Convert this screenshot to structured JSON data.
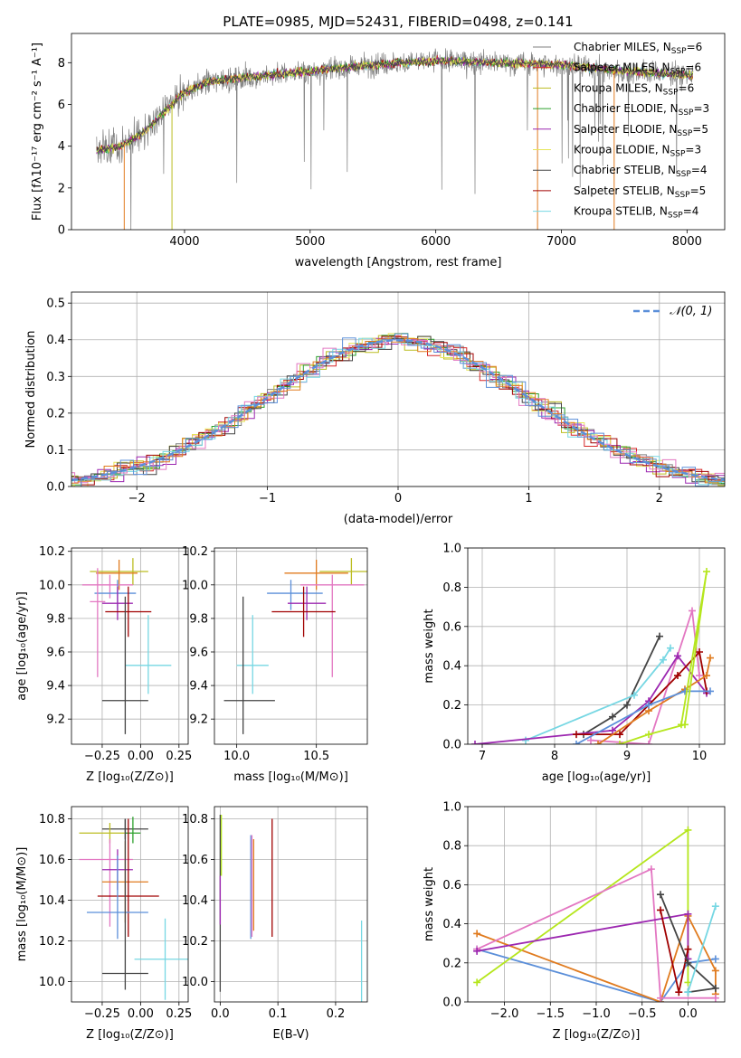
{
  "title": "PLATE=0985, MJD=52431, FIBERID=0498, z=0.141",
  "colors": {
    "chabrier_miles": "#7f7f7f",
    "salpeter_miles": "#d62728",
    "kroupa_miles": "#bcbd22",
    "chabrier_elodie": "#2ca02c",
    "salpeter_elodie": "#9c27b0",
    "kroupa_elodie": "#e6e65a",
    "chabrier_stelib": "#444444",
    "salpeter_stelib": "#a00000",
    "kroupa_stelib": "#76d7e3",
    "normal": "#5b8fd9",
    "extra_pink": "#e377c2",
    "extra_orange": "#e07b1f",
    "extra_blue": "#5b8fd9",
    "extra_lime": "#b5e61d"
  },
  "chart_data": [
    {
      "id": "spectrum",
      "type": "line",
      "xlabel": "wavelength [Angstrom, rest frame]",
      "ylabel": "Flux [fλ10⁻¹⁷ erg cm⁻² s⁻¹ A⁻¹]",
      "xlim": [
        3100,
        8300
      ],
      "ylim": [
        0,
        9.4
      ],
      "xticks": [
        4000,
        5000,
        6000,
        7000,
        8000
      ],
      "yticks": [
        0,
        2,
        4,
        6,
        8
      ],
      "grid": false,
      "legend_position": "right",
      "continuum_x": [
        3300,
        3500,
        3700,
        4000,
        4200,
        4500,
        5000,
        5500,
        6000,
        6500,
        7000,
        7500,
        8050
      ],
      "continuum_y": [
        3.8,
        4.0,
        4.8,
        6.6,
        7.1,
        7.3,
        7.6,
        7.9,
        8.1,
        8.0,
        7.9,
        7.6,
        7.4
      ],
      "series": [
        {
          "name": "Chabrier MILES, N$_{SSP}$=6",
          "label_main": "Chabrier MILES, N",
          "label_sub": "SSP",
          "label_tail": "=6",
          "color": "#7f7f7f"
        },
        {
          "name": "Salpeter MILES, N$_{SSP}$=6",
          "label_main": "Salpeter MILES, N",
          "label_sub": "SSP",
          "label_tail": "=6",
          "color": "#d62728"
        },
        {
          "name": "Kroupa MILES, N$_{SSP}$=6",
          "label_main": "Kroupa MILES, N",
          "label_sub": "SSP",
          "label_tail": "=6",
          "color": "#bcbd22"
        },
        {
          "name": "Chabrier ELODIE, N$_{SSP}$=3",
          "label_main": "Chabrier ELODIE, N",
          "label_sub": "SSP",
          "label_tail": "=3",
          "color": "#2ca02c"
        },
        {
          "name": "Salpeter ELODIE, N$_{SSP}$=5",
          "label_main": "Salpeter ELODIE, N",
          "label_sub": "SSP",
          "label_tail": "=5",
          "color": "#9c27b0"
        },
        {
          "name": "Kroupa ELODIE, N$_{SSP}$=3",
          "label_main": "Kroupa ELODIE, N",
          "label_sub": "SSP",
          "label_tail": "=3",
          "color": "#e6e65a"
        },
        {
          "name": "Chabrier STELIB, N$_{SSP}$=4",
          "label_main": "Chabrier STELIB, N",
          "label_sub": "SSP",
          "label_tail": "=4",
          "color": "#444444"
        },
        {
          "name": "Salpeter STELIB, N$_{SSP}$=5",
          "label_main": "Salpeter STELIB, N",
          "label_sub": "SSP",
          "label_tail": "=5",
          "color": "#a00000"
        },
        {
          "name": "Kroupa STELIB, N$_{SSP}$=4",
          "label_main": "Kroupa STELIB, N",
          "label_sub": "SSP",
          "label_tail": "=4",
          "color": "#76d7e3"
        }
      ]
    },
    {
      "id": "residuals",
      "type": "line",
      "xlabel": "(data-model)/error",
      "ylabel": "Normed distribution",
      "xlim": [
        -2.5,
        2.5
      ],
      "ylim": [
        0,
        0.53
      ],
      "xticks": [
        -2,
        -1,
        0,
        1,
        2
      ],
      "yticks": [
        0.0,
        0.1,
        0.2,
        0.3,
        0.4,
        0.5
      ],
      "grid": true,
      "legend_position": "top-right",
      "legend": "𝒩(0, 1)"
    },
    {
      "id": "age_vs_Z",
      "type": "scatter",
      "xlabel": "Z [log₁₀(Z/Z⊙)]",
      "ylabel": "age  [log₁₀(age/yr)]",
      "xlim": [
        -0.45,
        0.31
      ],
      "ylim": [
        9.05,
        10.22
      ],
      "xticks": [
        -0.25,
        0.0,
        0.25
      ],
      "xtick_labels": [
        "−0.25",
        "0.00",
        "0.25"
      ],
      "yticks": [
        9.2,
        9.4,
        9.6,
        9.8,
        10.0,
        10.2
      ],
      "grid": true,
      "points": [
        {
          "x": -0.05,
          "y": 10.08,
          "xerr": [
            0.28,
            0.1
          ],
          "yerr": [
            0.08,
            0.08
          ],
          "color": "#bcbd22"
        },
        {
          "x": -0.14,
          "y": 10.07,
          "xerr": [
            0.15,
            0.12
          ],
          "yerr": [
            0.1,
            0.08
          ],
          "color": "#e07b1f"
        },
        {
          "x": -0.2,
          "y": 10.0,
          "xerr": [
            0.18,
            0.15
          ],
          "yerr": [
            0.08,
            0.06
          ],
          "color": "#e377c2"
        },
        {
          "x": -0.15,
          "y": 9.95,
          "xerr": [
            0.15,
            0.12
          ],
          "yerr": [
            0.1,
            0.08
          ],
          "color": "#5b8fd9"
        },
        {
          "x": -0.15,
          "y": 9.89,
          "xerr": [
            0.1,
            0.1
          ],
          "yerr": [
            0.1,
            0.1
          ],
          "color": "#9c27b0"
        },
        {
          "x": -0.08,
          "y": 9.84,
          "xerr": [
            0.15,
            0.15
          ],
          "yerr": [
            0.15,
            0.15
          ],
          "color": "#a00000"
        },
        {
          "x": -0.28,
          "y": 9.9,
          "xerr": [
            0.05,
            0.05
          ],
          "yerr": [
            0.45,
            0.2
          ],
          "color": "#e377c2"
        },
        {
          "x": 0.05,
          "y": 9.52,
          "xerr": [
            0.15,
            0.15
          ],
          "yerr": [
            0.17,
            0.3
          ],
          "color": "#76d7e3"
        },
        {
          "x": -0.1,
          "y": 9.31,
          "xerr": [
            0.15,
            0.15
          ],
          "yerr": [
            0.2,
            0.62
          ],
          "color": "#444444"
        }
      ]
    },
    {
      "id": "age_vs_mass",
      "type": "scatter",
      "xlabel": "mass [log₁₀(M/M⊙)]",
      "ylabel": "",
      "xlim": [
        9.86,
        10.82
      ],
      "ylim": [
        9.05,
        10.22
      ],
      "xticks": [
        10.0,
        10.5
      ],
      "xtick_labels": [
        "10.0",
        "10.5"
      ],
      "yticks": [
        9.2,
        9.4,
        9.6,
        9.8,
        10.0,
        10.2
      ],
      "grid": true,
      "points": [
        {
          "x": 10.72,
          "y": 10.08,
          "xerr": [
            0.2,
            0.1
          ],
          "yerr": [
            0.08,
            0.08
          ],
          "color": "#bcbd22"
        },
        {
          "x": 10.5,
          "y": 10.07,
          "xerr": [
            0.2,
            0.2
          ],
          "yerr": [
            0.1,
            0.08
          ],
          "color": "#e07b1f"
        },
        {
          "x": 10.6,
          "y": 10.0,
          "xerr": [
            0.2,
            0.2
          ],
          "yerr": [
            0.55,
            0.06
          ],
          "color": "#e377c2"
        },
        {
          "x": 10.34,
          "y": 9.95,
          "xerr": [
            0.15,
            0.2
          ],
          "yerr": [
            0.1,
            0.08
          ],
          "color": "#5b8fd9"
        },
        {
          "x": 10.44,
          "y": 9.89,
          "xerr": [
            0.12,
            0.12
          ],
          "yerr": [
            0.1,
            0.1
          ],
          "color": "#9c27b0"
        },
        {
          "x": 10.42,
          "y": 9.84,
          "xerr": [
            0.2,
            0.2
          ],
          "yerr": [
            0.15,
            0.15
          ],
          "color": "#a00000"
        },
        {
          "x": 10.1,
          "y": 9.52,
          "xerr": [
            0.1,
            0.1
          ],
          "yerr": [
            0.17,
            0.3
          ],
          "color": "#76d7e3"
        },
        {
          "x": 10.04,
          "y": 9.31,
          "xerr": [
            0.12,
            0.2
          ],
          "yerr": [
            0.2,
            0.62
          ],
          "color": "#444444"
        }
      ]
    },
    {
      "id": "weight_vs_age",
      "type": "line",
      "xlabel": "age  [log₁₀(age/yr)]",
      "ylabel": "mass weight",
      "xlim": [
        6.8,
        10.35
      ],
      "ylim": [
        0,
        1.0
      ],
      "xticks": [
        7,
        8,
        9,
        10
      ],
      "yticks": [
        0.0,
        0.2,
        0.4,
        0.6,
        0.8,
        1.0
      ],
      "grid": true,
      "series": [
        {
          "color": "#444444",
          "x": [
            8.4,
            8.8,
            9.0,
            9.45
          ],
          "y": [
            0.05,
            0.14,
            0.2,
            0.55
          ]
        },
        {
          "color": "#76d7e3",
          "x": [
            7.6,
            9.1,
            9.5,
            9.6
          ],
          "y": [
            0.02,
            0.25,
            0.43,
            0.49
          ]
        },
        {
          "color": "#e377c2",
          "x": [
            8.5,
            9.3,
            9.9,
            10.0
          ],
          "y": [
            0.02,
            0.0,
            0.68,
            0.35
          ]
        },
        {
          "color": "#9c27b0",
          "x": [
            6.9,
            8.8,
            9.3,
            9.7,
            10.1
          ],
          "y": [
            0.0,
            0.07,
            0.22,
            0.45,
            0.26
          ]
        },
        {
          "color": "#a00000",
          "x": [
            8.3,
            8.9,
            9.7,
            10.0,
            10.1
          ],
          "y": [
            0.05,
            0.05,
            0.35,
            0.47,
            0.27
          ]
        },
        {
          "color": "#e07b1f",
          "x": [
            8.6,
            9.3,
            9.8,
            10.1,
            10.15
          ],
          "y": [
            0.0,
            0.17,
            0.28,
            0.35,
            0.44
          ]
        },
        {
          "color": "#5b8fd9",
          "x": [
            8.3,
            9.3,
            9.8,
            10.15
          ],
          "y": [
            0.0,
            0.2,
            0.27,
            0.27
          ]
        },
        {
          "color": "#b5e61d",
          "x": [
            8.9,
            9.3,
            9.8,
            10.1,
            9.75
          ],
          "y": [
            0.0,
            0.05,
            0.1,
            0.88,
            0.1
          ]
        }
      ]
    },
    {
      "id": "mass_vs_Z",
      "type": "scatter",
      "xlabel": "Z [log₁₀(Z/Z⊙)]",
      "ylabel": "mass [log₁₀(M/M⊙)]",
      "xlim": [
        -0.45,
        0.31
      ],
      "ylim": [
        9.9,
        10.86
      ],
      "xticks": [
        -0.25,
        0.0,
        0.25
      ],
      "xtick_labels": [
        "−0.25",
        "0.00",
        "0.25"
      ],
      "yticks": [
        10.0,
        10.2,
        10.4,
        10.6,
        10.8
      ],
      "grid": true,
      "points": [
        {
          "x": -0.1,
          "y": 10.75,
          "xerr": [
            0.15,
            0.15
          ],
          "yerr": [
            0.05,
            0.05
          ],
          "color": "#444444"
        },
        {
          "x": -0.2,
          "y": 10.73,
          "xerr": [
            0.2,
            0.1
          ],
          "yerr": [
            0.05,
            0.05
          ],
          "color": "#bcbd22"
        },
        {
          "x": -0.05,
          "y": 10.73,
          "xerr": [
            0.05,
            0.05
          ],
          "yerr": [
            0.05,
            0.08
          ],
          "color": "#2ca02c"
        },
        {
          "x": -0.2,
          "y": 10.6,
          "xerr": [
            0.2,
            0.15
          ],
          "yerr": [
            0.33,
            0.1
          ],
          "color": "#e377c2"
        },
        {
          "x": -0.15,
          "y": 10.55,
          "xerr": [
            0.1,
            0.1
          ],
          "yerr": [
            0.1,
            0.1
          ],
          "color": "#9c27b0"
        },
        {
          "x": -0.1,
          "y": 10.49,
          "xerr": [
            0.15,
            0.15
          ],
          "yerr": [
            0.2,
            0.2
          ],
          "color": "#e07b1f"
        },
        {
          "x": -0.08,
          "y": 10.42,
          "xerr": [
            0.2,
            0.2
          ],
          "yerr": [
            0.2,
            0.38
          ],
          "color": "#a00000"
        },
        {
          "x": -0.15,
          "y": 10.34,
          "xerr": [
            0.2,
            0.2
          ],
          "yerr": [
            0.13,
            0.28
          ],
          "color": "#5b8fd9"
        },
        {
          "x": 0.16,
          "y": 10.11,
          "xerr": [
            0.2,
            0.15
          ],
          "yerr": [
            0.2,
            0.2
          ],
          "color": "#76d7e3"
        },
        {
          "x": -0.1,
          "y": 10.04,
          "xerr": [
            0.15,
            0.15
          ],
          "yerr": [
            0.08,
            0.76
          ],
          "color": "#444444"
        }
      ]
    },
    {
      "id": "mass_vs_EBV",
      "type": "scatter",
      "xlabel": "E(B-V)",
      "ylabel": "",
      "xlim": [
        -0.01,
        0.255
      ],
      "ylim": [
        9.9,
        10.86
      ],
      "xticks": [
        0.0,
        0.1,
        0.2
      ],
      "xtick_labels": [
        "0.0",
        "0.1",
        "0.2"
      ],
      "yticks": [
        10.0,
        10.2,
        10.4,
        10.6,
        10.8
      ],
      "grid": true,
      "points": [
        {
          "x": 0.0,
          "y": 10.5,
          "xerr": [
            0,
            0
          ],
          "yerr": [
            0.55,
            0.32
          ],
          "color": "#444444"
        },
        {
          "x": 0.002,
          "y": 10.65,
          "xerr": [
            0,
            0
          ],
          "yerr": [
            0.13,
            0.17
          ],
          "color": "#b5e61d"
        },
        {
          "x": 0.0,
          "y": 10.4,
          "xerr": [
            0,
            0
          ],
          "yerr": [
            0.12,
            0.12
          ],
          "color": "#9c27b0"
        },
        {
          "x": 0.053,
          "y": 10.55,
          "xerr": [
            0,
            0
          ],
          "yerr": [
            0.34,
            0.17
          ],
          "color": "#5b8fd9"
        },
        {
          "x": 0.055,
          "y": 10.5,
          "xerr": [
            0,
            0
          ],
          "yerr": [
            0.28,
            0.22
          ],
          "color": "#e377c2"
        },
        {
          "x": 0.058,
          "y": 10.5,
          "xerr": [
            0,
            0
          ],
          "yerr": [
            0.25,
            0.2
          ],
          "color": "#e07b1f"
        },
        {
          "x": 0.09,
          "y": 10.5,
          "xerr": [
            0,
            0
          ],
          "yerr": [
            0.28,
            0.3
          ],
          "color": "#a00000"
        },
        {
          "x": 0.245,
          "y": 10.1,
          "xerr": [
            0,
            0
          ],
          "yerr": [
            0.2,
            0.2
          ],
          "color": "#76d7e3"
        }
      ]
    },
    {
      "id": "weight_vs_Z",
      "type": "line",
      "xlabel": "Z [log₁₀(Z/Z⊙)]",
      "ylabel": "mass weight",
      "xlim": [
        -2.4,
        0.4
      ],
      "ylim": [
        0,
        1.0
      ],
      "xticks": [
        -2.0,
        -1.5,
        -1.0,
        -0.5,
        0.0
      ],
      "xtick_labels": [
        "−2.0",
        "−1.5",
        "−1.0",
        "−0.5",
        "0.0"
      ],
      "yticks": [
        0.0,
        0.2,
        0.4,
        0.6,
        0.8,
        1.0
      ],
      "grid": true,
      "series": [
        {
          "color": "#5b8fd9",
          "x": [
            -2.3,
            -0.3,
            0.0,
            0.3
          ],
          "y": [
            0.27,
            0.0,
            0.2,
            0.22
          ]
        },
        {
          "color": "#e07b1f",
          "x": [
            -2.3,
            -0.3,
            0.0,
            0.3,
            0.3
          ],
          "y": [
            0.35,
            0.0,
            0.44,
            0.16,
            0.04
          ]
        },
        {
          "color": "#b5e61d",
          "x": [
            -2.3,
            0.0,
            0.0
          ],
          "y": [
            0.1,
            0.88,
            0.1
          ]
        },
        {
          "color": "#e377c2",
          "x": [
            -2.3,
            -0.4,
            -0.3,
            0.3
          ],
          "y": [
            0.27,
            0.68,
            0.02,
            0.02
          ]
        },
        {
          "color": "#9c27b0",
          "x": [
            -2.3,
            0.0,
            0.0
          ],
          "y": [
            0.26,
            0.45,
            0.22
          ]
        },
        {
          "color": "#a00000",
          "x": [
            -0.3,
            -0.1,
            0.0
          ],
          "y": [
            0.47,
            0.05,
            0.27
          ]
        },
        {
          "color": "#444444",
          "x": [
            -0.3,
            0.0,
            0.3,
            0.0
          ],
          "y": [
            0.55,
            0.2,
            0.07,
            0.05
          ]
        },
        {
          "color": "#76d7e3",
          "x": [
            0.0,
            0.3
          ],
          "y": [
            0.05,
            0.49
          ]
        }
      ]
    }
  ]
}
